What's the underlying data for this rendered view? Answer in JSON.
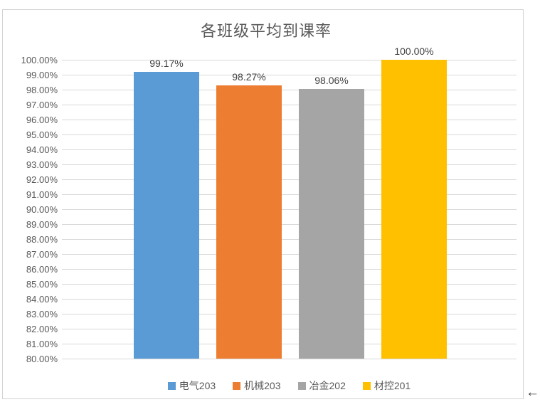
{
  "window": {
    "cursor_arrow": "←"
  },
  "chart_data": {
    "type": "bar",
    "title": "各班级平均到课率",
    "categories": [
      "电气203",
      "机械203",
      "冶金202",
      "材控201"
    ],
    "values": [
      99.17,
      98.27,
      98.06,
      100.0
    ],
    "value_labels": [
      "99.17%",
      "98.27%",
      "98.06%",
      "100.00%"
    ],
    "series_colors": [
      "#5B9BD5",
      "#ED7D31",
      "#A5A5A5",
      "#FFC000"
    ],
    "xlabel": "",
    "ylabel": "",
    "ylim": [
      80,
      100
    ],
    "y_tick_step": 1,
    "y_tick_labels": [
      "100.00%",
      "99.00%",
      "98.00%",
      "97.00%",
      "96.00%",
      "95.00%",
      "94.00%",
      "93.00%",
      "92.00%",
      "91.00%",
      "90.00%",
      "89.00%",
      "88.00%",
      "87.00%",
      "86.00%",
      "85.00%",
      "84.00%",
      "83.00%",
      "82.00%",
      "81.00%",
      "80.00%"
    ],
    "grid": true,
    "legend_position": "bottom",
    "legend_entries": [
      "电气203",
      "机械203",
      "冶金202",
      "材控201"
    ]
  },
  "style": {
    "background": "#FFFFFF",
    "frame_border_color": "#D2D2D2",
    "grid_color": "#D9D9D9",
    "title_color": "#595959",
    "tick_label_color": "#595959",
    "data_label_color": "#404040",
    "legend_text_color": "#595959"
  }
}
